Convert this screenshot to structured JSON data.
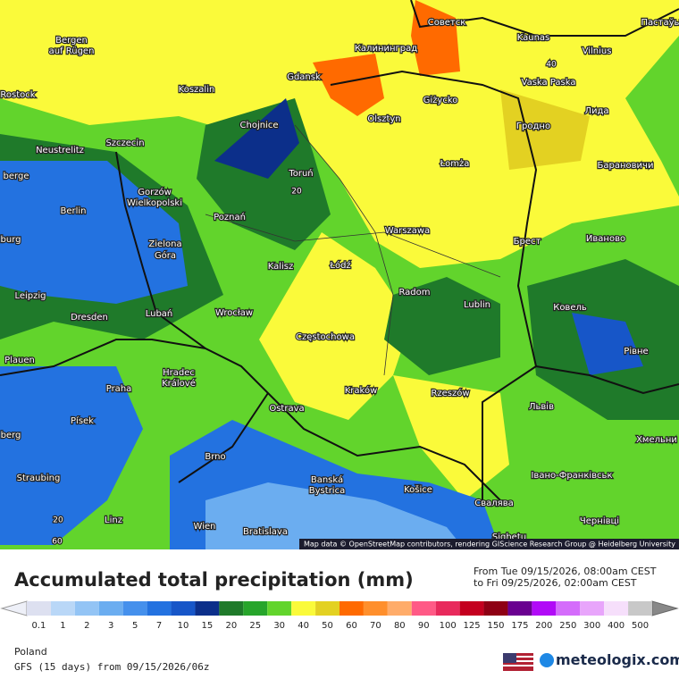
{
  "map": {
    "cities": [
      "Bergen",
      "auf Rügen",
      "Rostock",
      "Koszalin",
      "Gdansk",
      "Калининград",
      "Советск",
      "Kaunas",
      "Vilnius",
      "Пастаўы",
      "Vaska Paska",
      "Лида",
      "Olsztyn",
      "Giżycko",
      "Гродно",
      "Chojnice",
      "Szczecin",
      "Neustrelitz",
      "berge",
      "Toruń",
      "Łomża",
      "Барановичи",
      "Gorzów",
      "Wielkopolski",
      "Berlin",
      "Poznań",
      "Warszawa",
      "Брест",
      "Иваново",
      "burg",
      "Zielona",
      "Góra",
      "Kalisz",
      "Łódź",
      "Leipzig",
      "Radom",
      "Lublin",
      "Ковель",
      "Dresden",
      "Lubań",
      "Wrocław",
      "Częstochowa",
      "Plauen",
      "Рівне",
      "Praha",
      "Hradec",
      "Králové",
      "Kraków",
      "Rzeszów",
      "Ostrava",
      "Львів",
      "Písek",
      "berg",
      "Хмельни",
      "Brno",
      "Straubing",
      "Banská",
      "Bystrica",
      "Košice",
      "Івано-Франківськ",
      "Свалява",
      "Linz",
      "Wien",
      "Bratislava",
      "Чернівці",
      "Sighetu"
    ],
    "contour_labels": [
      "40",
      "20",
      "20",
      "60"
    ],
    "attribution": "Map data © OpenStreetMap contributors, rendering GIScience Research Group @ Heidelberg University"
  },
  "legend": {
    "title": "Accumulated total precipitation (mm)",
    "period_from": "From Tue 09/15/2026, 08:00am CEST",
    "period_to": "to Fri 09/25/2026, 02:00am CEST",
    "levels": [
      0.1,
      1,
      2,
      3,
      5,
      7,
      10,
      15,
      20,
      25,
      30,
      40,
      50,
      60,
      70,
      80,
      90,
      100,
      125,
      150,
      175,
      200,
      250,
      300,
      400,
      500
    ],
    "colors": [
      "#dde0f0",
      "#b9d7f7",
      "#93c4f5",
      "#6badf0",
      "#4590ec",
      "#2372e0",
      "#1756c8",
      "#0c2f8a",
      "#1f7a2a",
      "#27a52b",
      "#62d42c",
      "#fafa3a",
      "#e3d122",
      "#ff6a00",
      "#ff8f2c",
      "#ffac6a",
      "#ff5a86",
      "#e82a5c",
      "#c4001f",
      "#8e0014",
      "#6a0090",
      "#b10af7",
      "#d46cfb",
      "#e8a5fb",
      "#f6dffb",
      "#c8c8c8"
    ]
  },
  "footer": {
    "region": "Poland",
    "model": "GFS (15 days) from 09/15/2026/06z",
    "brand": "meteologix.com"
  }
}
